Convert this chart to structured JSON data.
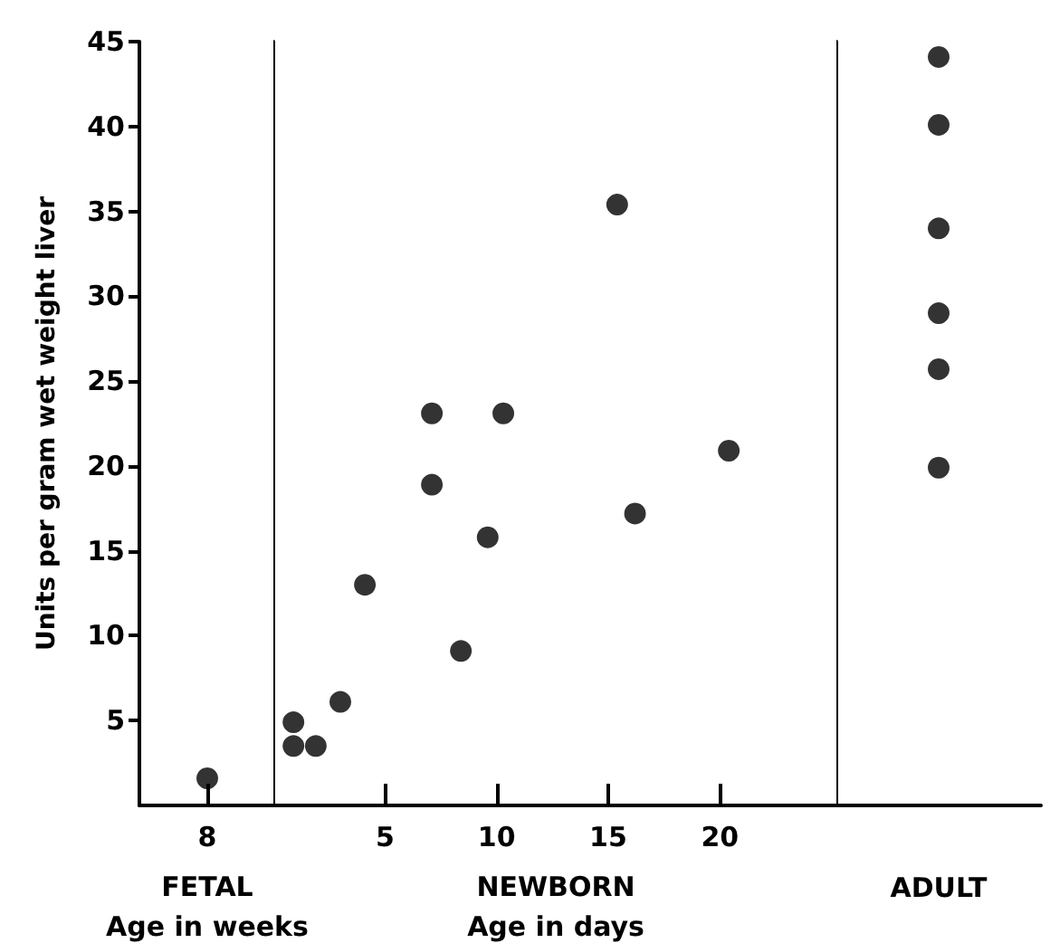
{
  "chart_data": [
    {
      "type": "scatter",
      "categories": [
        "8"
      ],
      "values": [
        1.6
      ],
      "color": "#000000",
      "marker": "circle",
      "xlabel": "FETAL\nAge in weeks",
      "ylabel": "Units per gram wet weight liver",
      "ylim": [
        0,
        45
      ],
      "yticks": [
        5,
        10,
        15,
        20,
        25,
        30,
        35,
        40,
        45
      ]
    },
    {
      "type": "scatter",
      "x": [
        0.9,
        0.9,
        1.9,
        3.0,
        4.1,
        7.1,
        7.1,
        8.4,
        9.6,
        10.3,
        15.4,
        16.2,
        20.4
      ],
      "values": [
        4.9,
        3.5,
        3.5,
        6.1,
        13.0,
        23.1,
        18.9,
        9.1,
        15.8,
        23.1,
        35.4,
        17.2,
        20.9
      ],
      "color": "#000000",
      "marker": "circle",
      "xlabel": "NEWBORN\nAge in days",
      "xlim": [
        0,
        25.3
      ],
      "xticks": [
        5,
        10,
        15,
        20
      ],
      "ylim": [
        0,
        45
      ],
      "tick_labels": "x"
    },
    {
      "type": "scatter",
      "categories": [
        "ADULT"
      ],
      "series": [
        {
          "color": "#000000",
          "values": [
            44.1
          ]
        },
        {
          "color": "#000000",
          "values": [
            40.1
          ]
        },
        {
          "color": "#000000",
          "values": [
            34.0
          ]
        },
        {
          "color": "#000000",
          "values": [
            29.0
          ]
        },
        {
          "color": "#000000",
          "values": [
            25.7
          ]
        },
        {
          "color": "#000000",
          "values": [
            19.9
          ]
        }
      ],
      "marker": "circle",
      "ylim": [
        0,
        45
      ],
      "tick_labels": "x"
    }
  ]
}
